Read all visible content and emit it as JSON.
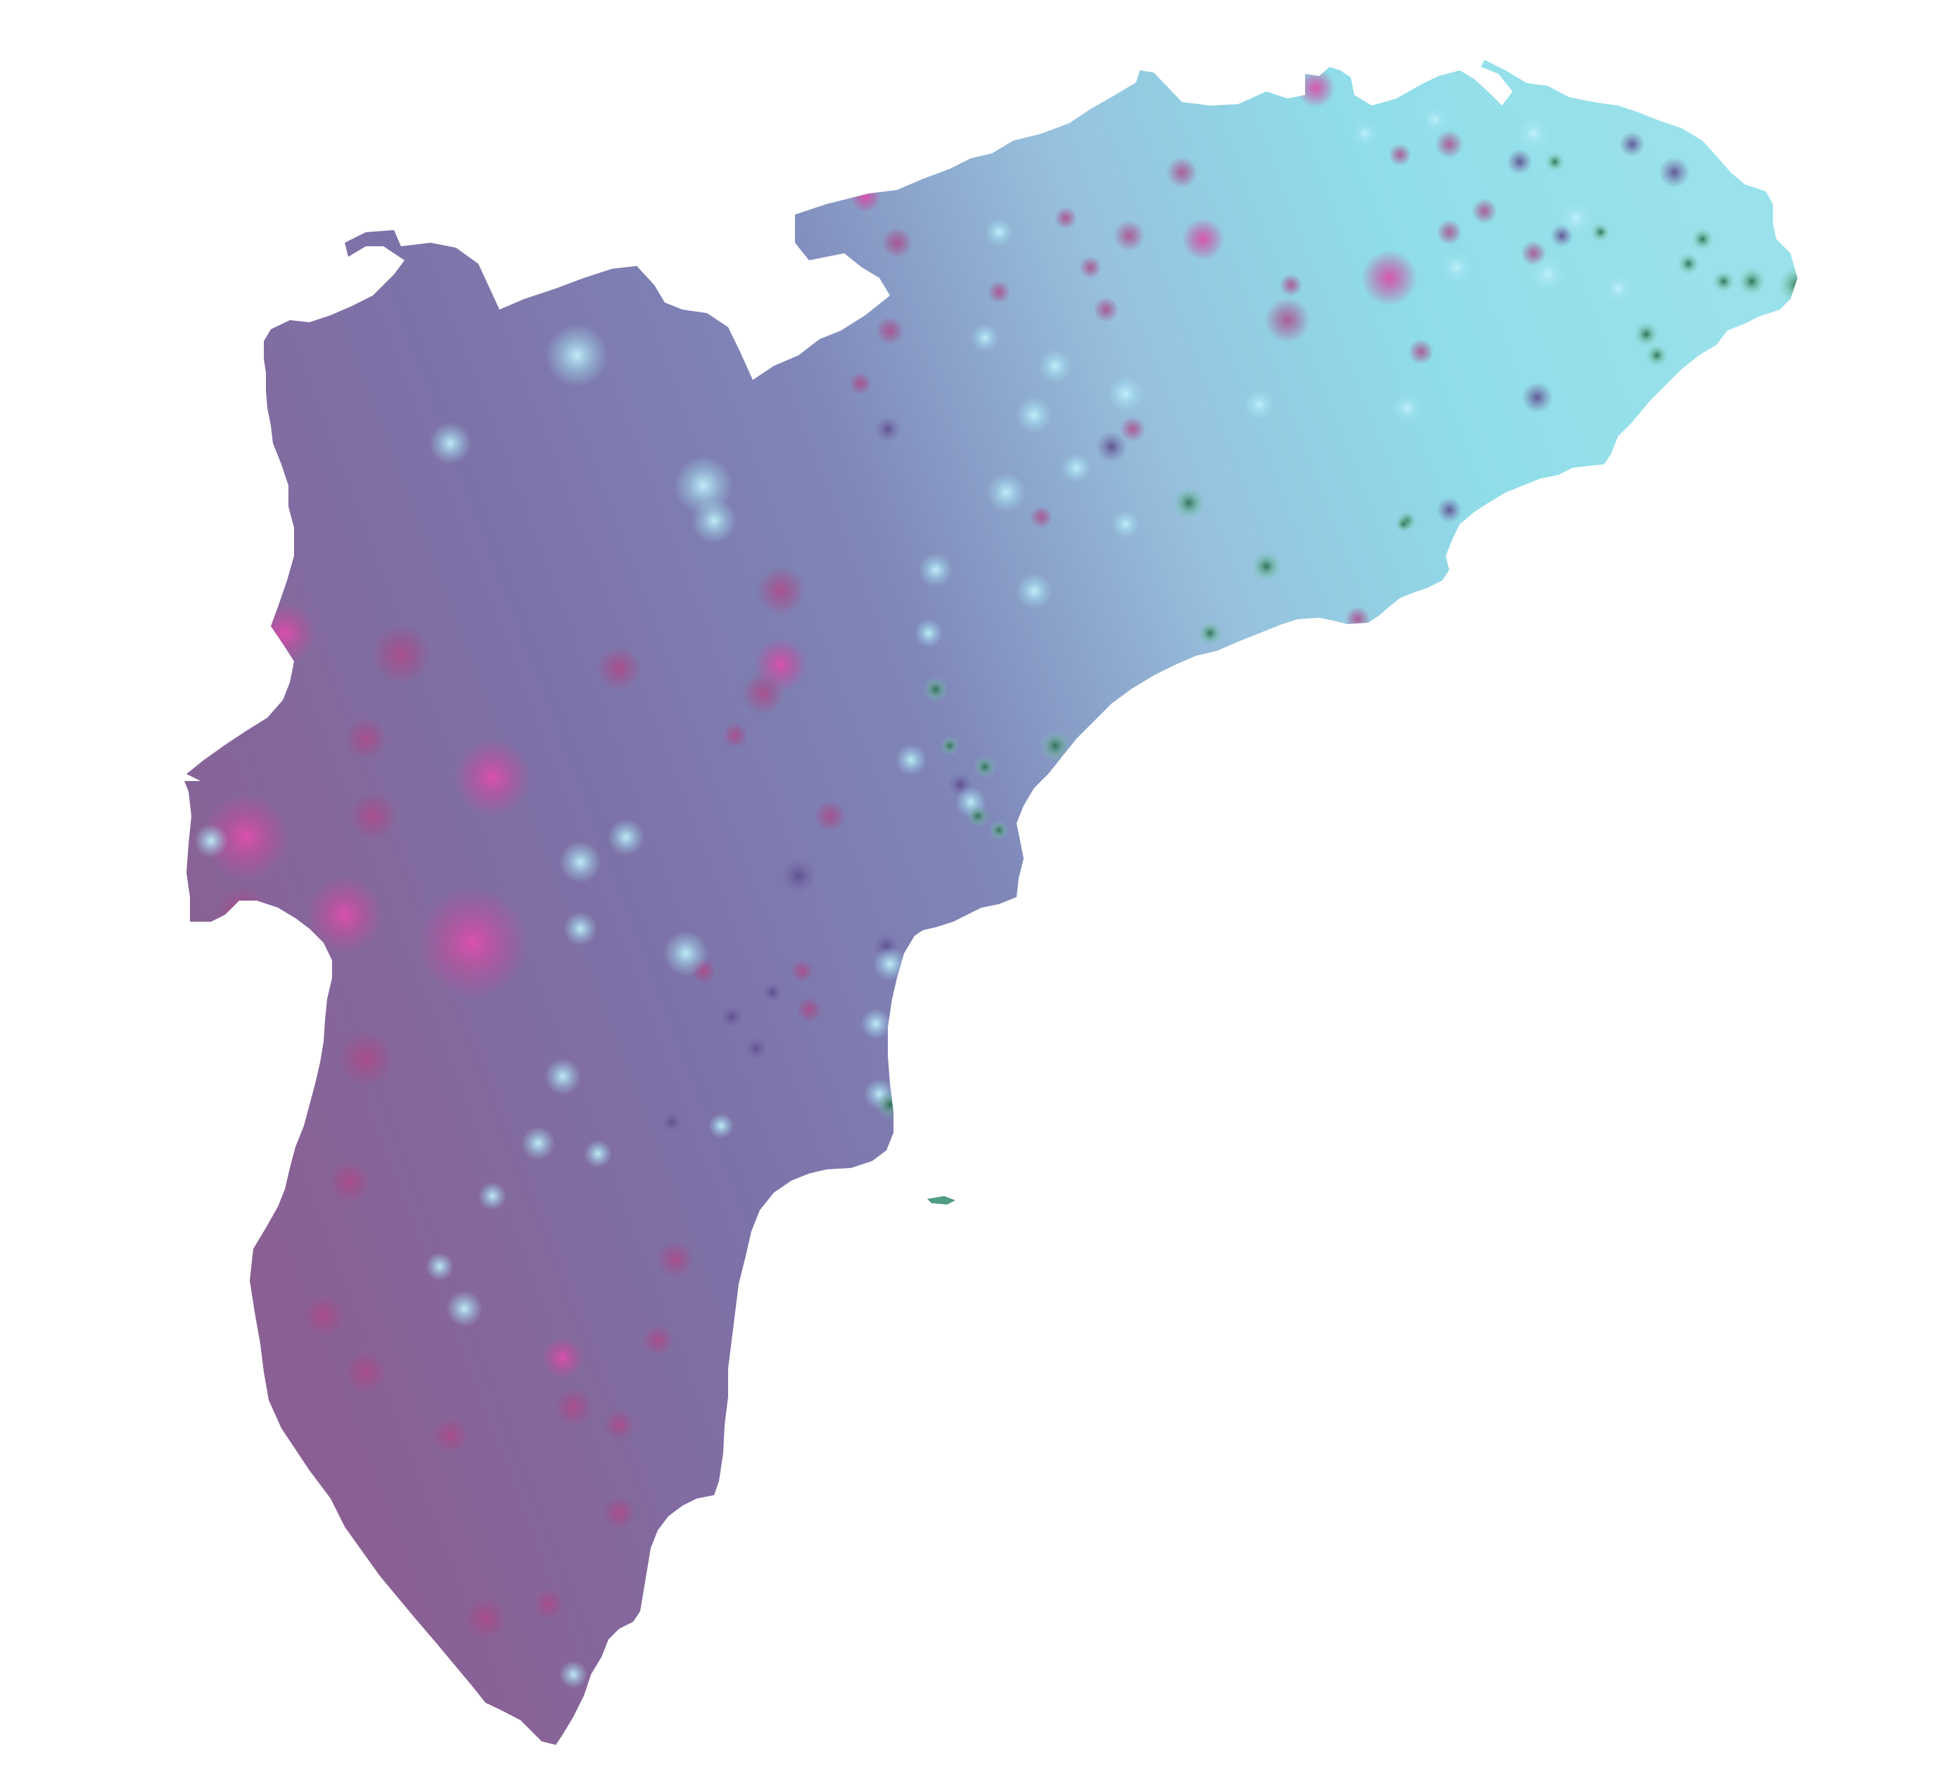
{
  "map": {
    "kind": "interpolated-surface",
    "labels_visible": false,
    "legend_visible": false,
    "colors": {
      "background": "#ffffff",
      "low_west": "#8a5f93",
      "mid": "#7f86b8",
      "high_east": "#8fdde9",
      "hotspot_magenta": "#d94aa5",
      "hotspot_dark_magenta": "#a94785",
      "hotspot_light": "#b8eef8",
      "hotspot_green": "#2d7b5b",
      "hotspot_dark_purple": "#5e4f8f"
    }
  }
}
